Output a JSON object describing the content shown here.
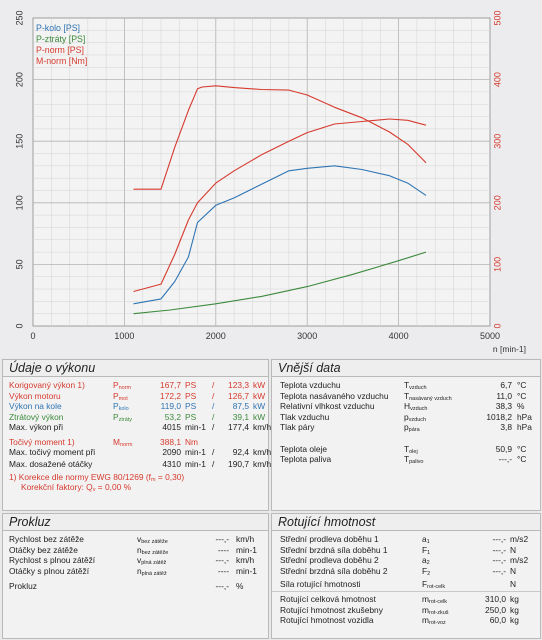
{
  "chart_data": {
    "type": "line",
    "xlabel": "n [min-1]",
    "xlim": [
      0,
      5000
    ],
    "x_ticks": [
      "0",
      "1000",
      "2000",
      "3000",
      "4000",
      "5000"
    ],
    "y_left_lim": [
      0,
      250
    ],
    "y_left_ticks": [
      "0",
      "50",
      "100",
      "150",
      "200",
      "250"
    ],
    "y_right_lim": [
      0,
      500
    ],
    "y_right_ticks": [
      "0",
      "100",
      "200",
      "300",
      "400",
      "500"
    ],
    "grid": true,
    "legend_position": "top-left",
    "series": [
      {
        "name": "P-kolo [PS]",
        "color": "#2f74b3",
        "axis": "left",
        "x": [
          1100,
          1400,
          1550,
          1700,
          1800,
          2000,
          2200,
          2500,
          2800,
          3000,
          3300,
          3600,
          3900,
          4100,
          4300
        ],
        "y": [
          18,
          22,
          36,
          56,
          84,
          98,
          104,
          115,
          126,
          128,
          130,
          127,
          122,
          116,
          106
        ]
      },
      {
        "name": "P-ztráty [PS]",
        "color": "#3d8a3d",
        "axis": "left",
        "x": [
          1100,
          1500,
          2000,
          2500,
          3000,
          3500,
          4000,
          4300
        ],
        "y": [
          10,
          13,
          18,
          24,
          32,
          42,
          53,
          60
        ]
      },
      {
        "name": "P-norm [PS]",
        "color": "#d63a2e",
        "axis": "left",
        "x": [
          1100,
          1400,
          1550,
          1700,
          1800,
          2000,
          2200,
          2500,
          2800,
          3000,
          3300,
          3600,
          3900,
          4100,
          4300
        ],
        "y": [
          28,
          34,
          58,
          86,
          100,
          116,
          126,
          139,
          150,
          157,
          164,
          166,
          168,
          167,
          163
        ]
      },
      {
        "name": "M-norm [Nm]",
        "color": "#d63a2e",
        "axis": "right",
        "x": [
          1100,
          1300,
          1400,
          1550,
          1700,
          1800,
          1850,
          2000,
          2200,
          2500,
          2800,
          3000,
          3300,
          3600,
          3900,
          4100,
          4300
        ],
        "y": [
          222,
          222,
          222,
          290,
          350,
          385,
          388,
          390,
          387,
          384,
          383,
          375,
          355,
          338,
          315,
          295,
          265
        ]
      }
    ]
  },
  "legend": [
    "P-kolo [PS]",
    "P-ztráty [PS]",
    "P-norm [PS]",
    "M-norm [Nm]"
  ],
  "vykon": {
    "title": "Údaje o výkonu",
    "rows": [
      {
        "label": "Korigovaný výkon",
        "sup": "1)",
        "sym": "P",
        "sub": "norm",
        "v1": "167,7",
        "u1": "PS",
        "sep": "/",
        "v2": "123,3",
        "u2": "kW",
        "cls": "red"
      },
      {
        "label": "Výkon motoru",
        "sup": "",
        "sym": "P",
        "sub": "mot",
        "v1": "172,2",
        "u1": "PS",
        "sep": "/",
        "v2": "126,7",
        "u2": "kW",
        "cls": "red"
      },
      {
        "label": "Výkon na kole",
        "sup": "",
        "sym": "P",
        "sub": "kolo",
        "v1": "119,0",
        "u1": "PS",
        "sep": "/",
        "v2": "87,5",
        "u2": "kW",
        "cls": "blue"
      },
      {
        "label": "Ztrátový výkon",
        "sup": "",
        "sym": "P",
        "sub": "ztráty",
        "v1": "53,2",
        "u1": "PS",
        "sep": "/",
        "v2": "39,1",
        "u2": "kW",
        "cls": "green"
      },
      {
        "label": "Max. výkon při",
        "sup": "",
        "sym": "",
        "sub": "",
        "v1": "4015",
        "u1": "min-1",
        "sep": "/",
        "v2": "177,4",
        "u2": "km/h",
        "cls": ""
      }
    ],
    "torque_label": "Točivý moment",
    "torque_sup": "1)",
    "torque_sym": "M",
    "torque_sub": "norm",
    "torque_v": "388,1",
    "torque_u": "Nm",
    "maxtorque_label": "Max. točivý moment při",
    "maxtorque_v1": "2090",
    "maxtorque_u1": "min-1",
    "maxtorque_v2": "92,4",
    "maxtorque_u2": "km/h",
    "maxrpm_label": "Max. dosažené otáčky",
    "maxrpm_v1": "4310",
    "maxrpm_u1": "min-1",
    "maxrpm_v2": "190,7",
    "maxrpm_u2": "km/h",
    "note1": "1) Korekce dle normy EWG 80/1269 (f",
    "note1_sub": "m",
    "note1_end": " = 0,30)",
    "note2": "Korekční faktory: Q",
    "note2_sub": "v",
    "note2_end": " =   0,00 %"
  },
  "vnejsi": {
    "title": "Vnější data",
    "rows": [
      {
        "label": "Teplota vzduchu",
        "sym": "T",
        "sub": "vzduch",
        "v": "6,7",
        "u": "°C"
      },
      {
        "label": "Teplota nasávaného vzduchu",
        "sym": "T",
        "sub": "nasávaný vzduch",
        "v": "11,0",
        "u": "°C"
      },
      {
        "label": "Relativní vlhkost vzduchu",
        "sym": "H",
        "sub": "vzduch",
        "v": "38,3",
        "u": "%"
      },
      {
        "label": "Tlak vzduchu",
        "sym": "p",
        "sub": "vzduch",
        "v": "1018,2",
        "u": "hPa"
      },
      {
        "label": "Tlak páry",
        "sym": "p",
        "sub": "pára",
        "v": "3,8",
        "u": "hPa"
      },
      {
        "label": "Teplota oleje",
        "sym": "T",
        "sub": "olej",
        "v": "50,9",
        "u": "°C"
      },
      {
        "label": "Teplota paliva",
        "sym": "T",
        "sub": "palivo",
        "v": "---,-",
        "u": "°C"
      }
    ]
  },
  "prokluz": {
    "title": "Prokluz",
    "rows": [
      {
        "label": "Rychlost bez zátěže",
        "sym": "v",
        "sub": "bez zátěže",
        "v": "---,-",
        "u": "km/h"
      },
      {
        "label": "Otáčky bez zátěže",
        "sym": "n",
        "sub": "bez zátěže",
        "v": "----",
        "u": "min-1"
      },
      {
        "label": "Rychlost s plnou zátěží",
        "sym": "v",
        "sub": "plná zátěž",
        "v": "---,-",
        "u": "km/h"
      },
      {
        "label": "Otáčky s plnou zátěží",
        "sym": "n",
        "sub": "plná zátěž",
        "v": "----",
        "u": "min-1"
      },
      {
        "label": "Prokluz",
        "sym": "",
        "sub": "",
        "v": "---,-",
        "u": "%"
      }
    ]
  },
  "hmotnost": {
    "title": "Rotující hmotnost",
    "rows": [
      {
        "label": "Střední prodleva doběhu 1",
        "sym": "a",
        "sub": "1",
        "v": "---,-",
        "u": "m/s2"
      },
      {
        "label": "Střední brzdná síla doběhu 1",
        "sym": "F",
        "sub": "1",
        "v": "---,-",
        "u": "N"
      },
      {
        "label": "Střední prodleva doběhu 2",
        "sym": "a",
        "sub": "2",
        "v": "---,-",
        "u": "m/s2"
      },
      {
        "label": "Střední brzdná síla doběhu 2",
        "sym": "F",
        "sub": "2",
        "v": "---,-",
        "u": "N"
      },
      {
        "label": "Síla rotující hmotnosti",
        "sym": "F",
        "sub": "rot-celk",
        "v": "",
        "u": "N"
      },
      {
        "label": "Rotující celková hmotnost",
        "sym": "m",
        "sub": "rot-celk",
        "v": "310,0",
        "u": "kg"
      },
      {
        "label": "Rotující hmotnost zkušebny",
        "sym": "m",
        "sub": "rot-zkuš",
        "v": "250,0",
        "u": "kg"
      },
      {
        "label": "Rotující hmotnost vozidla",
        "sym": "m",
        "sub": "rot-voz",
        "v": "60,0",
        "u": "kg"
      }
    ]
  }
}
